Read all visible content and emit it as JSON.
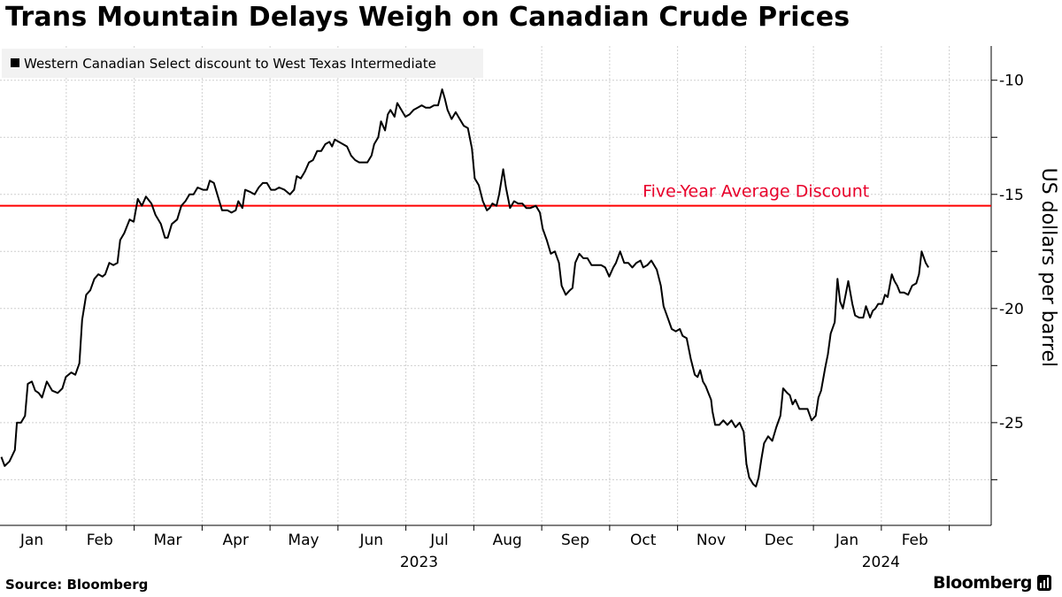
{
  "title": "Trans Mountain Delays Weigh on Canadian Crude Prices",
  "source": "Source: Bloomberg",
  "brand": "Bloomberg",
  "colors": {
    "line": "#000000",
    "reference": "#ff0000",
    "reference_label": "#e8002a",
    "grid": "#cfcfcf",
    "legend_bg": "#f2f2f2"
  },
  "chart_data": {
    "type": "line",
    "title": "Trans Mountain Delays Weigh on Canadian Crude Prices",
    "legend": "Western Canadian Select discount to West Texas Intermediate",
    "ylabel": "US dollars per barrel",
    "ylim": [
      -29.5,
      -8.5
    ],
    "yticks": [
      -10,
      -15,
      -20,
      -25
    ],
    "xlim": [
      -0.45,
      13.2
    ],
    "months": [
      "Jan",
      "Feb",
      "Mar",
      "Apr",
      "May",
      "Jun",
      "Jul",
      "Aug",
      "Sep",
      "Oct",
      "Nov",
      "Dec",
      "Jan",
      "Feb"
    ],
    "years": [
      {
        "label": "2023",
        "month_index": 5.7
      },
      {
        "label": "2024",
        "month_index": 12.5
      }
    ],
    "reference": {
      "label": "Five-Year Average Discount",
      "value": -15.5
    },
    "series": [
      {
        "name": "Western Canadian Select discount to West Texas Intermediate",
        "points": [
          [
            -0.45,
            -26.5
          ],
          [
            -0.4,
            -26.9
          ],
          [
            -0.33,
            -26.7
          ],
          [
            -0.25,
            -26.2
          ],
          [
            -0.22,
            -25.0
          ],
          [
            -0.16,
            -25.0
          ],
          [
            -0.1,
            -24.7
          ],
          [
            -0.06,
            -23.3
          ],
          [
            0.0,
            -23.2
          ],
          [
            0.05,
            -23.6
          ],
          [
            0.1,
            -23.7
          ],
          [
            0.15,
            -23.9
          ],
          [
            0.22,
            -23.2
          ],
          [
            0.3,
            -23.6
          ],
          [
            0.38,
            -23.7
          ],
          [
            0.45,
            -23.5
          ],
          [
            0.5,
            -23.0
          ],
          [
            0.58,
            -22.8
          ],
          [
            0.64,
            -22.9
          ],
          [
            0.7,
            -22.4
          ],
          [
            0.74,
            -20.5
          ],
          [
            0.8,
            -19.4
          ],
          [
            0.86,
            -19.2
          ],
          [
            0.92,
            -18.7
          ],
          [
            0.98,
            -18.5
          ],
          [
            1.04,
            -18.6
          ],
          [
            1.08,
            -18.5
          ],
          [
            1.14,
            -18.0
          ],
          [
            1.2,
            -18.1
          ],
          [
            1.26,
            -18.0
          ],
          [
            1.3,
            -17.0
          ],
          [
            1.36,
            -16.7
          ],
          [
            1.44,
            -16.1
          ],
          [
            1.5,
            -16.2
          ],
          [
            1.56,
            -15.2
          ],
          [
            1.62,
            -15.5
          ],
          [
            1.68,
            -15.1
          ],
          [
            1.76,
            -15.4
          ],
          [
            1.82,
            -15.9
          ],
          [
            1.9,
            -16.3
          ],
          [
            1.96,
            -16.9
          ],
          [
            2.0,
            -16.9
          ],
          [
            2.06,
            -16.3
          ],
          [
            2.14,
            -16.1
          ],
          [
            2.2,
            -15.5
          ],
          [
            2.26,
            -15.3
          ],
          [
            2.32,
            -15.0
          ],
          [
            2.38,
            -15.0
          ],
          [
            2.44,
            -14.7
          ],
          [
            2.52,
            -14.8
          ],
          [
            2.58,
            -14.8
          ],
          [
            2.62,
            -14.4
          ],
          [
            2.68,
            -14.5
          ],
          [
            2.74,
            -15.1
          ],
          [
            2.8,
            -15.7
          ],
          [
            2.88,
            -15.7
          ],
          [
            2.94,
            -15.8
          ],
          [
            3.0,
            -15.7
          ],
          [
            3.04,
            -15.3
          ],
          [
            3.1,
            -15.6
          ],
          [
            3.14,
            -14.8
          ],
          [
            3.22,
            -14.9
          ],
          [
            3.28,
            -15.0
          ],
          [
            3.34,
            -14.7
          ],
          [
            3.4,
            -14.5
          ],
          [
            3.46,
            -14.5
          ],
          [
            3.52,
            -14.8
          ],
          [
            3.58,
            -14.8
          ],
          [
            3.64,
            -14.7
          ],
          [
            3.72,
            -14.8
          ],
          [
            3.8,
            -15.0
          ],
          [
            3.86,
            -14.8
          ],
          [
            3.9,
            -14.2
          ],
          [
            3.96,
            -14.3
          ],
          [
            4.02,
            -14.0
          ],
          [
            4.08,
            -13.6
          ],
          [
            4.14,
            -13.5
          ],
          [
            4.2,
            -13.1
          ],
          [
            4.26,
            -13.1
          ],
          [
            4.32,
            -12.8
          ],
          [
            4.38,
            -12.7
          ],
          [
            4.42,
            -12.9
          ],
          [
            4.46,
            -12.6
          ],
          [
            4.52,
            -12.7
          ],
          [
            4.58,
            -12.8
          ],
          [
            4.64,
            -12.9
          ],
          [
            4.7,
            -13.3
          ],
          [
            4.76,
            -13.5
          ],
          [
            4.82,
            -13.6
          ],
          [
            4.88,
            -13.6
          ],
          [
            4.94,
            -13.6
          ],
          [
            5.0,
            -13.3
          ],
          [
            5.04,
            -12.8
          ],
          [
            5.1,
            -12.5
          ],
          [
            5.14,
            -11.8
          ],
          [
            5.2,
            -12.2
          ],
          [
            5.24,
            -11.5
          ],
          [
            5.28,
            -11.3
          ],
          [
            5.34,
            -11.6
          ],
          [
            5.38,
            -11.0
          ],
          [
            5.44,
            -11.3
          ],
          [
            5.5,
            -11.6
          ],
          [
            5.56,
            -11.5
          ],
          [
            5.62,
            -11.3
          ],
          [
            5.68,
            -11.2
          ],
          [
            5.74,
            -11.1
          ],
          [
            5.8,
            -11.2
          ],
          [
            5.86,
            -11.2
          ],
          [
            5.92,
            -11.1
          ],
          [
            5.98,
            -11.1
          ],
          [
            6.04,
            -10.4
          ],
          [
            6.08,
            -10.8
          ],
          [
            6.12,
            -11.3
          ],
          [
            6.18,
            -11.7
          ],
          [
            6.24,
            -11.4
          ],
          [
            6.3,
            -11.7
          ],
          [
            6.36,
            -12.0
          ],
          [
            6.42,
            -12.1
          ],
          [
            6.48,
            -13.0
          ],
          [
            6.52,
            -14.3
          ],
          [
            6.58,
            -14.6
          ],
          [
            6.64,
            -15.3
          ],
          [
            6.7,
            -15.7
          ],
          [
            6.74,
            -15.6
          ],
          [
            6.78,
            -15.4
          ],
          [
            6.84,
            -15.5
          ],
          [
            6.88,
            -15.0
          ],
          [
            6.94,
            -13.9
          ],
          [
            6.98,
            -14.7
          ],
          [
            7.04,
            -15.6
          ],
          [
            7.1,
            -15.3
          ],
          [
            7.16,
            -15.4
          ],
          [
            7.22,
            -15.4
          ],
          [
            7.28,
            -15.6
          ],
          [
            7.34,
            -15.6
          ],
          [
            7.42,
            -15.5
          ],
          [
            7.48,
            -15.8
          ],
          [
            7.52,
            -16.5
          ],
          [
            7.58,
            -17.0
          ],
          [
            7.64,
            -17.6
          ],
          [
            7.7,
            -17.5
          ],
          [
            7.76,
            -18.0
          ],
          [
            7.8,
            -19.0
          ],
          [
            7.86,
            -19.4
          ],
          [
            7.92,
            -19.2
          ],
          [
            7.96,
            -19.1
          ],
          [
            8.0,
            -18.0
          ],
          [
            8.06,
            -17.6
          ],
          [
            8.12,
            -17.8
          ],
          [
            8.18,
            -17.8
          ],
          [
            8.24,
            -18.1
          ],
          [
            8.3,
            -18.1
          ],
          [
            8.38,
            -18.1
          ],
          [
            8.44,
            -18.2
          ],
          [
            8.5,
            -18.6
          ],
          [
            8.56,
            -18.2
          ],
          [
            8.6,
            -18.0
          ],
          [
            8.66,
            -17.5
          ],
          [
            8.72,
            -18.0
          ],
          [
            8.78,
            -18.0
          ],
          [
            8.84,
            -18.2
          ],
          [
            8.9,
            -18.0
          ],
          [
            8.96,
            -17.9
          ],
          [
            9.0,
            -18.2
          ],
          [
            9.06,
            -18.1
          ],
          [
            9.12,
            -17.9
          ],
          [
            9.2,
            -18.3
          ],
          [
            9.26,
            -19.0
          ],
          [
            9.3,
            -19.9
          ],
          [
            9.36,
            -20.4
          ],
          [
            9.42,
            -20.9
          ],
          [
            9.48,
            -21.0
          ],
          [
            9.54,
            -20.9
          ],
          [
            9.58,
            -21.2
          ],
          [
            9.64,
            -21.3
          ],
          [
            9.7,
            -22.2
          ],
          [
            9.76,
            -22.9
          ],
          [
            9.8,
            -23.0
          ],
          [
            9.84,
            -22.7
          ],
          [
            9.88,
            -23.2
          ],
          [
            9.92,
            -23.4
          ],
          [
            9.96,
            -23.7
          ],
          [
            10.0,
            -24.0
          ],
          [
            10.02,
            -24.5
          ],
          [
            10.06,
            -25.1
          ],
          [
            10.12,
            -25.1
          ],
          [
            10.18,
            -24.9
          ],
          [
            10.24,
            -25.1
          ],
          [
            10.3,
            -24.9
          ],
          [
            10.36,
            -25.2
          ],
          [
            10.42,
            -25.0
          ],
          [
            10.48,
            -25.4
          ],
          [
            10.52,
            -26.8
          ],
          [
            10.56,
            -27.4
          ],
          [
            10.62,
            -27.7
          ],
          [
            10.66,
            -27.8
          ],
          [
            10.7,
            -27.4
          ],
          [
            10.74,
            -26.6
          ],
          [
            10.78,
            -25.9
          ],
          [
            10.84,
            -25.6
          ],
          [
            10.9,
            -25.8
          ],
          [
            10.96,
            -25.2
          ],
          [
            11.02,
            -24.7
          ],
          [
            11.06,
            -23.5
          ],
          [
            11.12,
            -23.7
          ],
          [
            11.16,
            -23.8
          ],
          [
            11.2,
            -24.2
          ],
          [
            11.24,
            -24.0
          ],
          [
            11.3,
            -24.4
          ],
          [
            11.36,
            -24.4
          ],
          [
            11.42,
            -24.4
          ],
          [
            11.48,
            -24.9
          ],
          [
            11.54,
            -24.7
          ],
          [
            11.58,
            -23.9
          ],
          [
            11.62,
            -23.6
          ],
          [
            11.68,
            -22.6
          ],
          [
            11.72,
            -22.0
          ],
          [
            11.76,
            -21.1
          ],
          [
            11.82,
            -20.6
          ],
          [
            11.86,
            -18.7
          ],
          [
            11.9,
            -19.7
          ],
          [
            11.94,
            -20.0
          ],
          [
            11.98,
            -19.4
          ],
          [
            12.02,
            -18.8
          ],
          [
            12.08,
            -19.8
          ],
          [
            12.12,
            -20.3
          ],
          [
            12.18,
            -20.4
          ],
          [
            12.24,
            -20.4
          ],
          [
            12.28,
            -19.9
          ],
          [
            12.34,
            -20.4
          ],
          [
            12.38,
            -20.1
          ],
          [
            12.42,
            -20.0
          ],
          [
            12.46,
            -19.8
          ],
          [
            12.52,
            -19.8
          ],
          [
            12.56,
            -19.4
          ],
          [
            12.6,
            -19.5
          ],
          [
            12.66,
            -18.5
          ],
          [
            12.7,
            -18.8
          ],
          [
            12.74,
            -19.0
          ],
          [
            12.78,
            -19.3
          ],
          [
            12.84,
            -19.3
          ],
          [
            12.9,
            -19.4
          ],
          [
            12.96,
            -19.0
          ],
          [
            13.02,
            -18.9
          ],
          [
            13.06,
            -18.5
          ],
          [
            13.1,
            -17.5
          ],
          [
            13.16,
            -18.0
          ],
          [
            13.2,
            -18.2
          ]
        ]
      }
    ]
  }
}
